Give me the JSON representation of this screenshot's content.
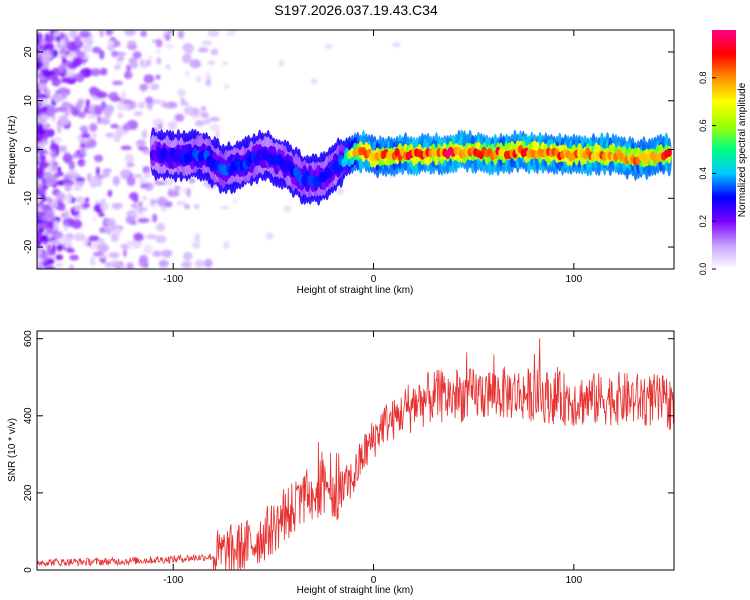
{
  "title": "S197.2026.037.19.43.C34",
  "chart_data": [
    {
      "type": "heatmap",
      "title": "S197.2026.037.19.43.C34",
      "xlabel": "Height of straight line (km)",
      "ylabel": "Frequency (Hz)",
      "xlim": [
        -168,
        150
      ],
      "ylim": [
        -24.5,
        24.5
      ],
      "x_ticks": [
        -100,
        0,
        100
      ],
      "x_tick_labels": [
        "-100",
        "0",
        "100"
      ],
      "y_ticks": [
        -20,
        -10,
        0,
        10,
        20
      ],
      "y_tick_labels": [
        "-20",
        "-10",
        "0",
        "10",
        "20"
      ],
      "colorbar": {
        "label": "Normalized spectral amplitude",
        "range": [
          0,
          1
        ],
        "ticks": [
          0.0,
          0.2,
          0.4,
          0.6,
          0.8
        ],
        "tick_labels": [
          "0.0",
          "0.2",
          "0.4",
          "0.6",
          "0.8"
        ],
        "colormap": [
          "#ffffff",
          "#c8a0ff",
          "#7a00ff",
          "#0000ff",
          "#00c8ff",
          "#00ff80",
          "#a0ff00",
          "#ffff00",
          "#ff9000",
          "#ff0000",
          "#ff0088"
        ]
      },
      "ridge": {
        "x": [
          -110,
          -95,
          -85,
          -75,
          -65,
          -55,
          -45,
          -35,
          -25,
          -18,
          -10,
          -5,
          0,
          10,
          20,
          30,
          40,
          50,
          60,
          70,
          80,
          90,
          100,
          110,
          120,
          130,
          140,
          148
        ],
        "frequency": [
          -1,
          -1.5,
          -1,
          -4,
          -3,
          -1,
          -3,
          -6,
          -6,
          -3,
          -1,
          -0.5,
          -1.5,
          -1,
          -1,
          -1,
          -0.5,
          -0.5,
          -1,
          -0.5,
          -0.5,
          -1,
          -1,
          -1,
          -1,
          -2,
          -1.5,
          -1
        ],
        "amplitude": [
          0.25,
          0.3,
          0.32,
          0.33,
          0.33,
          0.28,
          0.3,
          0.32,
          0.3,
          0.3,
          0.7,
          0.9,
          0.8,
          0.85,
          0.9,
          0.85,
          0.9,
          0.85,
          0.85,
          0.85,
          0.88,
          0.85,
          0.85,
          0.85,
          0.85,
          0.8,
          0.85,
          0.85
        ]
      }
    },
    {
      "type": "line",
      "xlabel": "Height of straight line (km)",
      "ylabel": "SNR (10 * v/v)",
      "xlim": [
        -168,
        150
      ],
      "ylim": [
        0,
        620
      ],
      "x_ticks": [
        -100,
        0,
        100
      ],
      "x_tick_labels": [
        "-100",
        "0",
        "100"
      ],
      "y_ticks": [
        0,
        200,
        400,
        600
      ],
      "y_tick_labels": [
        "0",
        "200",
        "400",
        "600"
      ],
      "color": "#e83030",
      "trend": {
        "x": [
          -168,
          -130,
          -100,
          -80,
          -70,
          -60,
          -50,
          -40,
          -30,
          -20,
          -10,
          -5,
          0,
          5,
          10,
          15,
          20,
          30,
          40,
          60,
          80,
          100,
          120,
          140,
          150
        ],
        "y": [
          20,
          22,
          28,
          35,
          50,
          70,
          110,
          160,
          200,
          180,
          240,
          300,
          340,
          380,
          390,
          410,
          430,
          450,
          450,
          460,
          455,
          440,
          445,
          440,
          430
        ]
      }
    }
  ]
}
